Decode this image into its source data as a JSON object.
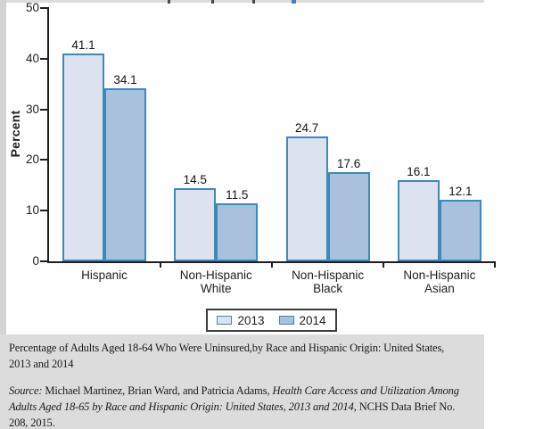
{
  "chart_data": {
    "type": "bar",
    "title": "",
    "xlabel": "",
    "ylabel": "Percent",
    "ylim": [
      0,
      50
    ],
    "yticks": [
      0,
      10,
      20,
      30,
      40,
      50
    ],
    "grid": false,
    "value_labels": true,
    "legend_position": "bottom",
    "categories": [
      [
        "Hispanic"
      ],
      [
        "Non-Hispanic",
        "White"
      ],
      [
        "Non-Hispanic",
        "Black"
      ],
      [
        "Non-Hispanic",
        "Asian"
      ]
    ],
    "series": [
      {
        "name": "2013",
        "values": [
          41.1,
          14.5,
          24.7,
          16.1
        ],
        "fill": "#dbe3f0",
        "border": "#3e89b5"
      },
      {
        "name": "2014",
        "values": [
          34.1,
          11.5,
          17.6,
          12.1
        ],
        "fill": "#a9c1dd",
        "border": "#3e89b5"
      }
    ]
  },
  "caption": {
    "lines": [
      "Percentage of Adults Aged 18-64 Who Were Uninsured,by Race and Hispanic Origin: United States,",
      "2013 and 2014"
    ],
    "source_segments": [
      {
        "text": "Source:",
        "italic": true
      },
      {
        "text": " Michael Martinez, Brian Ward, and Patricia Adams, ",
        "italic": false
      },
      {
        "text": "Health Care Access and Utilization Among",
        "italic": true,
        "break_after": true
      },
      {
        "text": "Adults Aged 18-65 by Race and Hispanic Origin: United States, 2013 and 2014",
        "italic": true
      },
      {
        "text": ", NCHS Data Brief No.",
        "italic": false,
        "break_after": true
      },
      {
        "text": "208, 2015.",
        "italic": false
      }
    ]
  }
}
